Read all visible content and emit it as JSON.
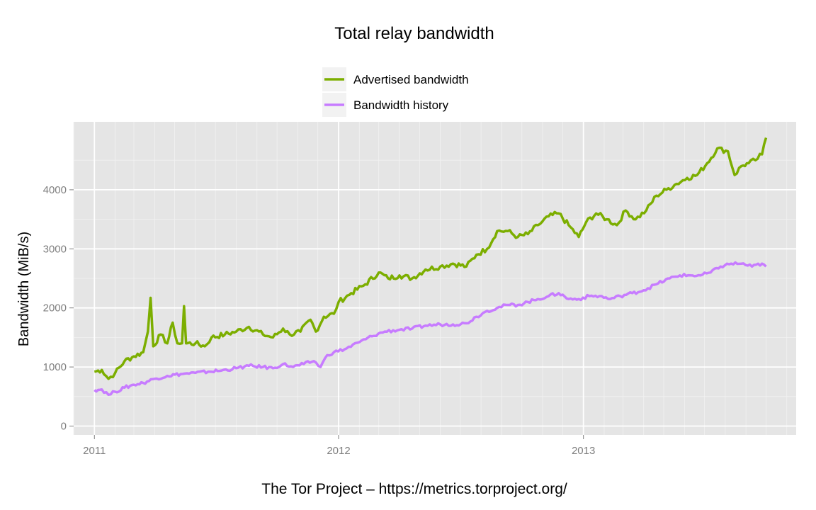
{
  "chart_data": {
    "type": "line",
    "title": "Total relay bandwidth",
    "xlabel": "",
    "ylabel": "Bandwidth (MiB/s)",
    "caption": "The Tor Project – https://metrics.torproject.org/",
    "xlim": [
      "2010-12-01",
      "2013-11-15"
    ],
    "ylim": [
      -150,
      5150
    ],
    "y_ticks": [
      0,
      1000,
      2000,
      3000,
      4000
    ],
    "x_ticks": [
      {
        "date": "2011-01-01",
        "label": "2011"
      },
      {
        "date": "2012-01-01",
        "label": "2012"
      },
      {
        "date": "2013-01-01",
        "label": "2013"
      }
    ],
    "grid": true,
    "legend_position": "top",
    "series": [
      {
        "name": "Advertised bandwidth",
        "color": "#7cae00",
        "points": [
          [
            "2011-01-01",
            920
          ],
          [
            "2011-01-12",
            950
          ],
          [
            "2011-01-22",
            800
          ],
          [
            "2011-02-01",
            900
          ],
          [
            "2011-02-15",
            1100
          ],
          [
            "2011-03-01",
            1180
          ],
          [
            "2011-03-15",
            1250
          ],
          [
            "2011-03-22",
            1600
          ],
          [
            "2011-03-26",
            2170
          ],
          [
            "2011-03-30",
            1350
          ],
          [
            "2011-04-10",
            1550
          ],
          [
            "2011-04-20",
            1400
          ],
          [
            "2011-04-28",
            1750
          ],
          [
            "2011-05-05",
            1400
          ],
          [
            "2011-05-12",
            1400
          ],
          [
            "2011-05-15",
            2030
          ],
          [
            "2011-05-18",
            1400
          ],
          [
            "2011-06-01",
            1400
          ],
          [
            "2011-06-15",
            1350
          ],
          [
            "2011-06-25",
            1500
          ],
          [
            "2011-07-15",
            1550
          ],
          [
            "2011-08-01",
            1600
          ],
          [
            "2011-08-20",
            1680
          ],
          [
            "2011-09-10",
            1550
          ],
          [
            "2011-09-25",
            1500
          ],
          [
            "2011-10-10",
            1650
          ],
          [
            "2011-10-20",
            1550
          ],
          [
            "2011-11-05",
            1600
          ],
          [
            "2011-11-20",
            1800
          ],
          [
            "2011-11-28",
            1600
          ],
          [
            "2011-12-10",
            1850
          ],
          [
            "2011-12-25",
            1900
          ],
          [
            "2012-01-01",
            2100
          ],
          [
            "2012-01-20",
            2250
          ],
          [
            "2012-02-10",
            2400
          ],
          [
            "2012-03-01",
            2600
          ],
          [
            "2012-03-15",
            2500
          ],
          [
            "2012-04-01",
            2550
          ],
          [
            "2012-04-20",
            2500
          ],
          [
            "2012-05-10",
            2650
          ],
          [
            "2012-06-01",
            2700
          ],
          [
            "2012-06-20",
            2750
          ],
          [
            "2012-07-10",
            2700
          ],
          [
            "2012-07-25",
            2900
          ],
          [
            "2012-08-10",
            3000
          ],
          [
            "2012-08-25",
            3300
          ],
          [
            "2012-09-10",
            3300
          ],
          [
            "2012-09-25",
            3200
          ],
          [
            "2012-10-10",
            3250
          ],
          [
            "2012-10-25",
            3400
          ],
          [
            "2012-11-10",
            3550
          ],
          [
            "2012-11-25",
            3600
          ],
          [
            "2012-12-10",
            3400
          ],
          [
            "2012-12-25",
            3200
          ],
          [
            "2013-01-05",
            3450
          ],
          [
            "2013-01-20",
            3600
          ],
          [
            "2013-02-05",
            3500
          ],
          [
            "2013-02-20",
            3400
          ],
          [
            "2013-03-05",
            3650
          ],
          [
            "2013-03-20",
            3500
          ],
          [
            "2013-04-05",
            3650
          ],
          [
            "2013-04-20",
            3900
          ],
          [
            "2013-05-05",
            4000
          ],
          [
            "2013-05-20",
            4100
          ],
          [
            "2013-06-05",
            4200
          ],
          [
            "2013-06-20",
            4250
          ],
          [
            "2013-07-05",
            4450
          ],
          [
            "2013-07-20",
            4700
          ],
          [
            "2013-08-05",
            4650
          ],
          [
            "2013-08-15",
            4250
          ],
          [
            "2013-08-25",
            4400
          ],
          [
            "2013-09-05",
            4450
          ],
          [
            "2013-09-15",
            4500
          ],
          [
            "2013-09-25",
            4600
          ],
          [
            "2013-10-01",
            4880
          ]
        ]
      },
      {
        "name": "Bandwidth history",
        "color": "#c77cff",
        "points": [
          [
            "2011-01-01",
            610
          ],
          [
            "2011-01-12",
            620
          ],
          [
            "2011-01-22",
            530
          ],
          [
            "2011-02-01",
            580
          ],
          [
            "2011-02-15",
            650
          ],
          [
            "2011-03-01",
            700
          ],
          [
            "2011-03-15",
            730
          ],
          [
            "2011-04-01",
            800
          ],
          [
            "2011-04-20",
            850
          ],
          [
            "2011-05-10",
            880
          ],
          [
            "2011-06-01",
            900
          ],
          [
            "2011-06-20",
            920
          ],
          [
            "2011-07-10",
            940
          ],
          [
            "2011-08-01",
            980
          ],
          [
            "2011-08-20",
            1020
          ],
          [
            "2011-09-10",
            1000
          ],
          [
            "2011-09-25",
            980
          ],
          [
            "2011-10-10",
            1050
          ],
          [
            "2011-10-25",
            1000
          ],
          [
            "2011-11-10",
            1050
          ],
          [
            "2011-11-25",
            1100
          ],
          [
            "2011-12-05",
            1000
          ],
          [
            "2011-12-15",
            1200
          ],
          [
            "2011-12-25",
            1250
          ],
          [
            "2012-01-10",
            1300
          ],
          [
            "2012-02-01",
            1420
          ],
          [
            "2012-02-20",
            1520
          ],
          [
            "2012-03-10",
            1600
          ],
          [
            "2012-04-01",
            1630
          ],
          [
            "2012-04-20",
            1650
          ],
          [
            "2012-05-10",
            1700
          ],
          [
            "2012-06-01",
            1720
          ],
          [
            "2012-06-20",
            1720
          ],
          [
            "2012-07-10",
            1740
          ],
          [
            "2012-07-25",
            1850
          ],
          [
            "2012-08-10",
            1950
          ],
          [
            "2012-08-25",
            2000
          ],
          [
            "2012-09-10",
            2050
          ],
          [
            "2012-09-25",
            2050
          ],
          [
            "2012-10-10",
            2100
          ],
          [
            "2012-10-25",
            2150
          ],
          [
            "2012-11-10",
            2200
          ],
          [
            "2012-11-25",
            2250
          ],
          [
            "2012-12-10",
            2150
          ],
          [
            "2012-12-25",
            2150
          ],
          [
            "2013-01-10",
            2200
          ],
          [
            "2013-01-25",
            2200
          ],
          [
            "2013-02-10",
            2150
          ],
          [
            "2013-02-25",
            2200
          ],
          [
            "2013-03-15",
            2250
          ],
          [
            "2013-04-01",
            2300
          ],
          [
            "2013-04-20",
            2400
          ],
          [
            "2013-05-10",
            2500
          ],
          [
            "2013-05-25",
            2550
          ],
          [
            "2013-06-10",
            2550
          ],
          [
            "2013-06-25",
            2550
          ],
          [
            "2013-07-10",
            2600
          ],
          [
            "2013-07-25",
            2700
          ],
          [
            "2013-08-10",
            2750
          ],
          [
            "2013-08-25",
            2750
          ],
          [
            "2013-09-10",
            2700
          ],
          [
            "2013-09-25",
            2750
          ],
          [
            "2013-10-01",
            2700
          ]
        ]
      }
    ]
  }
}
